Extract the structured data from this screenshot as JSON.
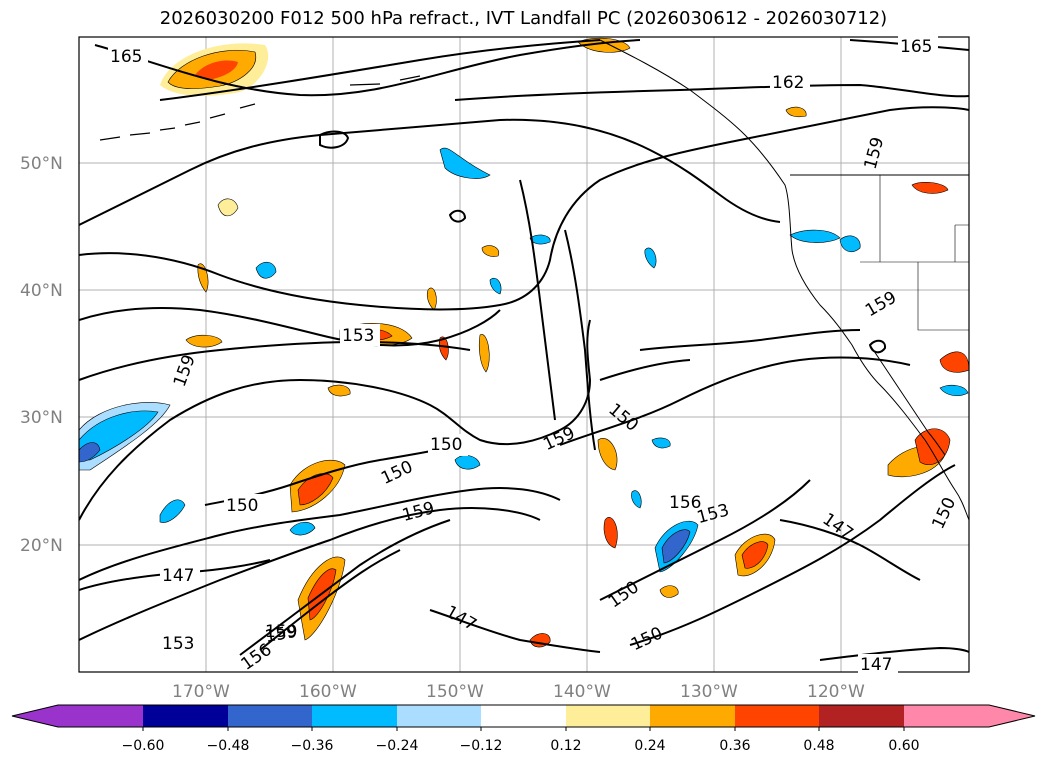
{
  "title": "2026030200 F012 500 hPa refract., IVT Landfall PC (2026030612 - 2026030712)",
  "axes": {
    "lat_labels": [
      "50°N",
      "40°N",
      "30°N",
      "20°N"
    ],
    "lon_labels": [
      "170°W",
      "160°W",
      "150°W",
      "140°W",
      "130°W",
      "120°W"
    ]
  },
  "contour_labels": [
    "165",
    "165",
    "162",
    "159",
    "159",
    "159",
    "153",
    "159",
    "150",
    "150",
    "150",
    "159",
    "150",
    "159",
    "156",
    "153",
    "150",
    "147",
    "147",
    "153",
    "156",
    "159",
    "147",
    "150",
    "150",
    "147"
  ],
  "colorbar": {
    "colors": [
      "#9933cc",
      "#000099",
      "#3366cc",
      "#00bbff",
      "#aaddff",
      "#ffffff",
      "#ffee99",
      "#ffaa00",
      "#ff4400",
      "#b22222",
      "#ff88aa"
    ],
    "tick_labels": [
      "−0.60",
      "−0.48",
      "−0.36",
      "−0.24",
      "−0.12",
      "0.12",
      "0.24",
      "0.36",
      "0.48",
      "0.60"
    ]
  },
  "colors": {
    "grid": "#b0b0b0",
    "contour": "#000000",
    "positive_low": "#ffee99",
    "positive_mid": "#ffaa00",
    "positive_high": "#ff4400",
    "negative_low": "#aaddff",
    "negative_mid": "#00bbff",
    "negative_high": "#3366cc"
  }
}
